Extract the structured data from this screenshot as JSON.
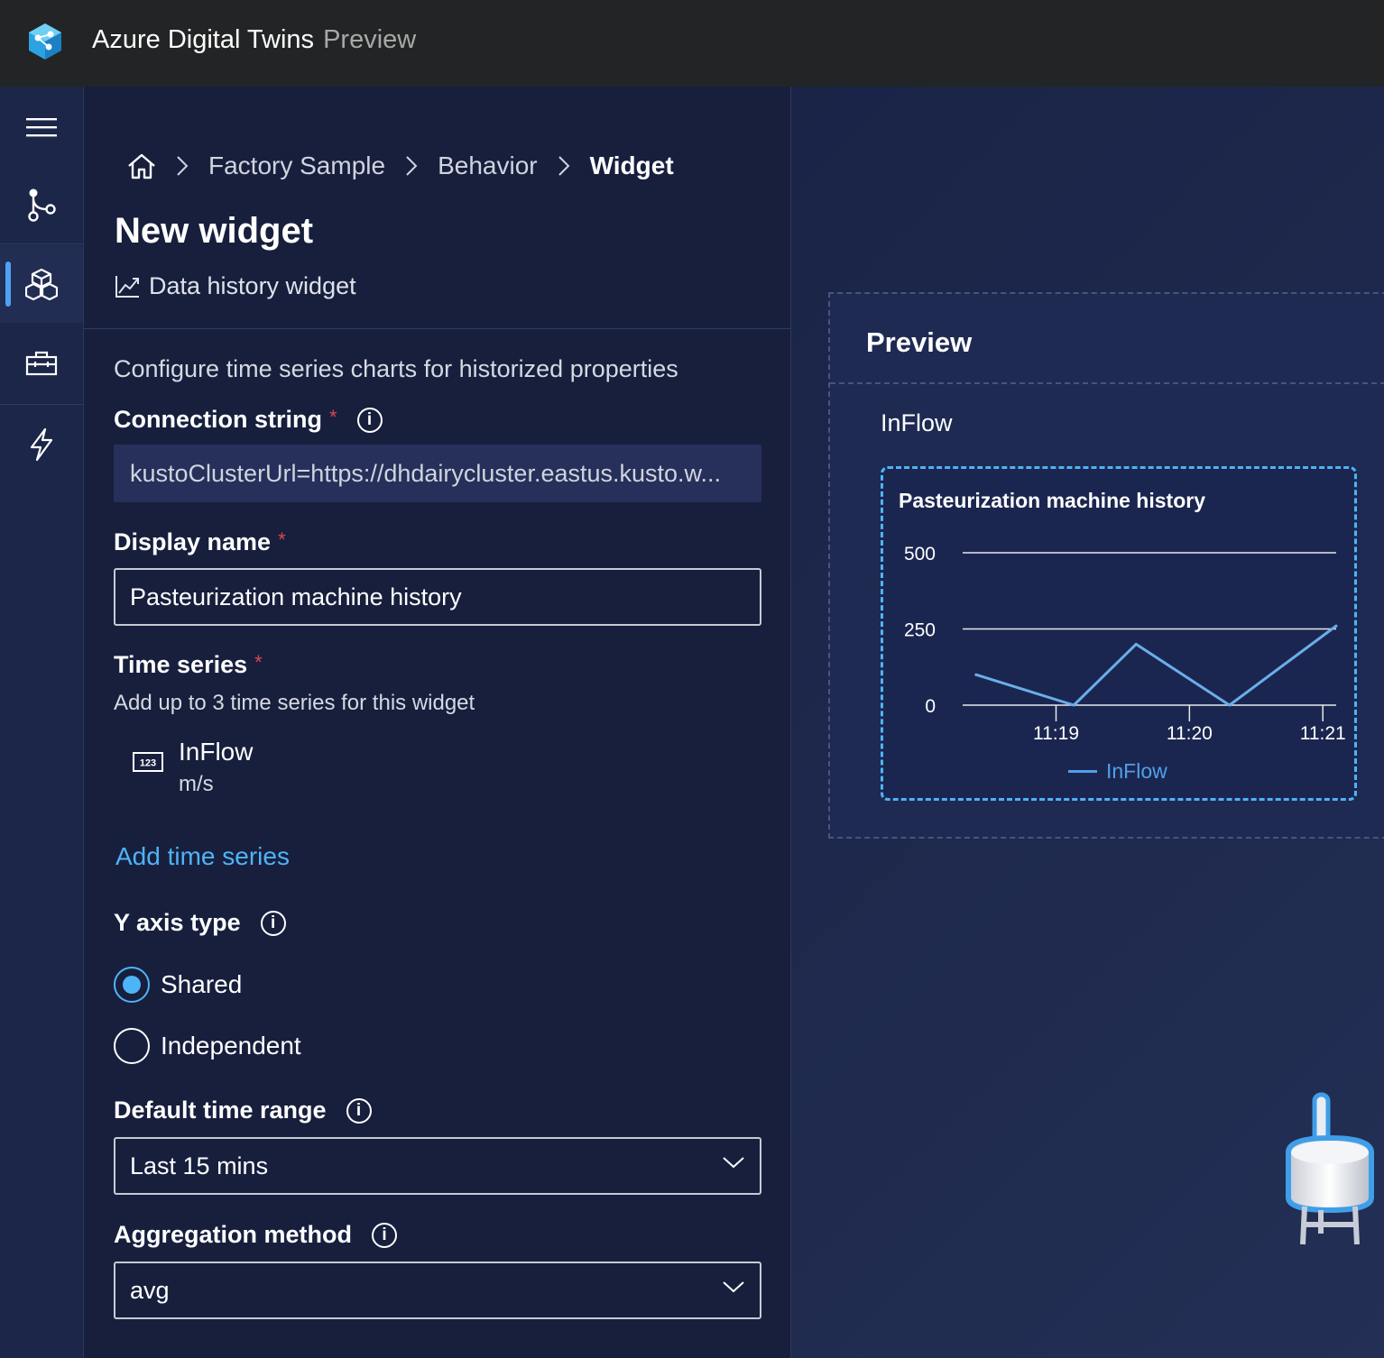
{
  "header": {
    "app_title": "Azure Digital Twins",
    "app_tag": "Preview"
  },
  "nav": {
    "items": [
      {
        "icon": "menu-icon"
      },
      {
        "icon": "graph-icon"
      },
      {
        "icon": "scene-builder-icon",
        "active": true
      },
      {
        "icon": "toolbox-icon"
      },
      {
        "icon": "lightning-icon"
      }
    ]
  },
  "breadcrumb": {
    "items": [
      "Factory Sample",
      "Behavior"
    ],
    "current": "Widget"
  },
  "page": {
    "title": "New widget",
    "widget_type": "Data history widget",
    "description": "Configure time series charts for historized properties"
  },
  "form": {
    "connection_string": {
      "label": "Connection string",
      "required": "*",
      "value": "kustoClusterUrl=https://dhdairycluster.eastus.kusto.w..."
    },
    "display_name": {
      "label": "Display name",
      "required": "*",
      "value": "Pasteurization machine history"
    },
    "time_series": {
      "label": "Time series",
      "required": "*",
      "hint": "Add up to 3 time series for this widget",
      "items": [
        {
          "name": "InFlow",
          "unit": "m/s",
          "icon_text": "123"
        }
      ],
      "add_link": "Add time series"
    },
    "y_axis_type": {
      "label": "Y axis type",
      "options": [
        {
          "label": "Shared",
          "checked": true
        },
        {
          "label": "Independent",
          "checked": false
        }
      ]
    },
    "default_time_range": {
      "label": "Default time range",
      "value": "Last 15 mins"
    },
    "aggregation_method": {
      "label": "Aggregation method",
      "value": "avg"
    }
  },
  "preview": {
    "title": "Preview",
    "subtitle": "InFlow",
    "chart_title": "Pasteurization machine history"
  },
  "chart_data": {
    "type": "line",
    "title": "Pasteurization machine history",
    "xlabel": "",
    "ylabel": "",
    "ylim": [
      0,
      500
    ],
    "yticks": [
      0,
      250,
      500
    ],
    "xticks": [
      "11:19",
      "11:20",
      "11:21"
    ],
    "grid": true,
    "legend": "bottom",
    "series": [
      {
        "name": "InFlow",
        "color": "#6aaeea",
        "points": [
          {
            "t": "11:18:24",
            "v": 100
          },
          {
            "t": "11:19:08",
            "v": 0
          },
          {
            "t": "11:19:36",
            "v": 200
          },
          {
            "t": "11:20:18",
            "v": 0
          },
          {
            "t": "11:21:06",
            "v": 260
          }
        ]
      }
    ]
  }
}
